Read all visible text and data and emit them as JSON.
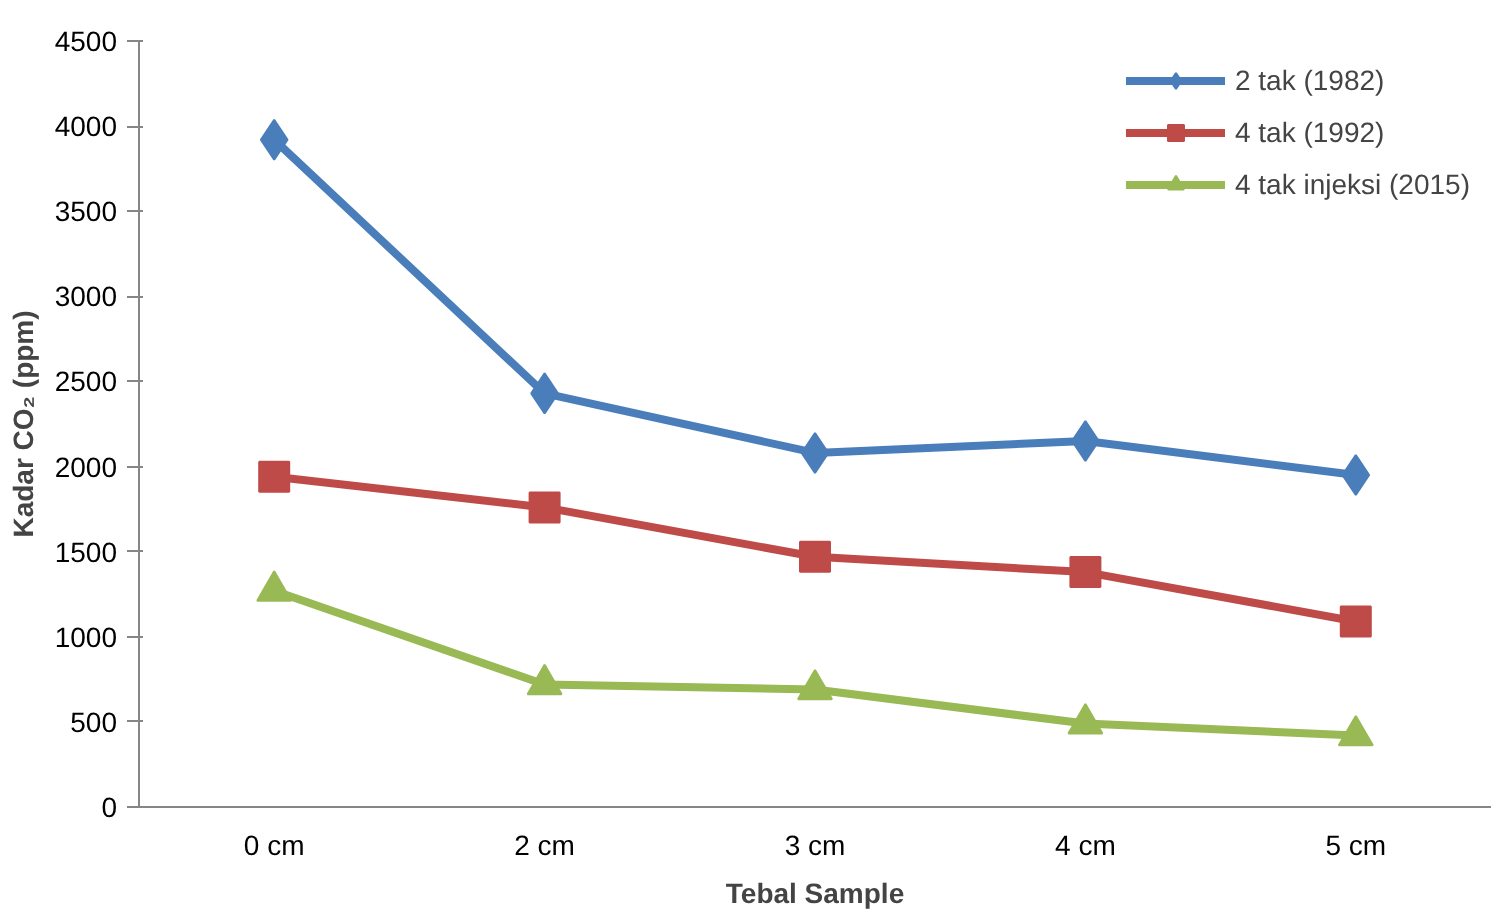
{
  "chart_data": {
    "type": "line",
    "xlabel": "Tebal Sample",
    "ylabel": "Kadar CO₂ (ppm)",
    "categories": [
      "0 cm",
      "2 cm",
      "3 cm",
      "4 cm",
      "5 cm"
    ],
    "ylim": [
      0,
      4500
    ],
    "yticks": [
      0,
      500,
      1000,
      1500,
      2000,
      2500,
      3000,
      3500,
      4000,
      4500
    ],
    "grid": false,
    "legend": "top right",
    "line_style": "solid",
    "series": [
      {
        "name": "2 tak (1982)",
        "color": "#4a7ebb",
        "marker": "diamond",
        "values": [
          3920,
          2430,
          2080,
          2150,
          1950
        ]
      },
      {
        "name": "4 tak (1992)",
        "color": "#be4b48",
        "marker": "square",
        "values": [
          1940,
          1760,
          1470,
          1380,
          1090
        ]
      },
      {
        "name": "4 tak injeksi (2015)",
        "color": "#98b954",
        "marker": "triangle",
        "values": [
          1270,
          720,
          690,
          490,
          420
        ]
      }
    ]
  }
}
